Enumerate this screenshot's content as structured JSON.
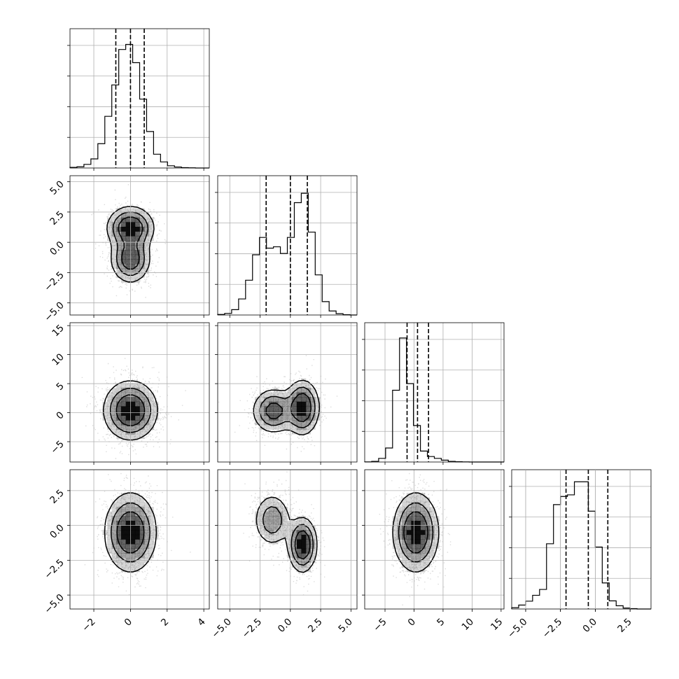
{
  "chart_data": {
    "type": "corner",
    "params": [
      {
        "name": "",
        "range": [
          -3.3,
          4.3
        ],
        "ticks": [
          -2,
          0,
          2,
          4
        ],
        "tick_labels": [
          "−2",
          "0",
          "2",
          "4"
        ],
        "quantiles": [
          -0.8,
          0.0,
          0.75
        ]
      },
      {
        "name": "",
        "range": [
          -6.0,
          5.5
        ],
        "ticks": [
          -5.0,
          -2.5,
          0.0,
          2.5,
          5.0
        ],
        "tick_labels": [
          "−5.0",
          "−2.5",
          "0.0",
          "2.5",
          "5.0"
        ],
        "quantiles": [
          -2.0,
          0.0,
          1.4
        ]
      },
      {
        "name": "",
        "range": [
          -8.5,
          15.5
        ],
        "ticks": [
          -5,
          0,
          5,
          10,
          15
        ],
        "tick_labels": [
          "−5",
          "0",
          "5",
          "10",
          "15"
        ],
        "quantiles": [
          -1.2,
          0.6,
          2.5
        ]
      },
      {
        "name": "",
        "range": [
          -6.0,
          4.0
        ],
        "ticks": [
          -5.0,
          -2.5,
          0.0,
          2.5
        ],
        "tick_labels": [
          "−5.0",
          "−2.5",
          "0.0",
          "2.5"
        ],
        "quantiles": [
          -2.1,
          -0.5,
          0.9
        ]
      }
    ],
    "histograms": [
      {
        "param": 0,
        "bin_start": -3.3,
        "bin_width": 0.38,
        "counts": [
          3,
          6,
          18,
          45,
          120,
          255,
          410,
          585,
          610,
          520,
          340,
          180,
          68,
          30,
          11,
          5,
          2,
          1,
          0,
          0
        ],
        "ymax": 660
      },
      {
        "param": 1,
        "bin_start": -6.0,
        "bin_width": 0.575,
        "counts": [
          2,
          6,
          20,
          60,
          130,
          225,
          290,
          250,
          255,
          230,
          290,
          420,
          455,
          310,
          150,
          50,
          15,
          5,
          1,
          0
        ],
        "ymax": 500
      },
      {
        "param": 2,
        "bin_start": -8.5,
        "bin_width": 1.2,
        "counts": [
          1,
          5,
          30,
          115,
          590,
          1020,
          645,
          300,
          90,
          45,
          30,
          15,
          5,
          2,
          1,
          0,
          0,
          0,
          0,
          0
        ],
        "ymax": 1100
      },
      {
        "param": 3,
        "bin_start": -6.0,
        "bin_width": 0.5,
        "counts": [
          4,
          12,
          24,
          42,
          60,
          200,
          320,
          345,
          350,
          390,
          390,
          300,
          190,
          80,
          25,
          10,
          3,
          1,
          0,
          0
        ],
        "ymax": 410
      }
    ],
    "pairs": [
      {
        "x_param": 0,
        "y_param": 1,
        "modes": [
          {
            "mx": 0.0,
            "my": 1.2,
            "sx": 0.65,
            "sy": 0.9,
            "w": 0.55
          },
          {
            "mx": 0.0,
            "my": -1.4,
            "sx": 0.55,
            "sy": 1.0,
            "w": 0.45
          }
        ]
      },
      {
        "x_param": 0,
        "y_param": 2,
        "modes": [
          {
            "mx": 0.0,
            "my": 0.4,
            "sx": 0.75,
            "sy": 2.6,
            "w": 1.0
          }
        ]
      },
      {
        "x_param": 1,
        "y_param": 2,
        "modes": [
          {
            "mx": -1.4,
            "my": 0.3,
            "sx": 0.9,
            "sy": 2.0,
            "w": 0.45
          },
          {
            "mx": 1.0,
            "my": 0.9,
            "sx": 0.7,
            "sy": 2.4,
            "w": 0.55
          }
        ]
      },
      {
        "x_param": 0,
        "y_param": 3,
        "modes": [
          {
            "mx": 0.0,
            "my": -0.5,
            "sx": 0.72,
            "sy": 1.45,
            "w": 1.0
          }
        ]
      },
      {
        "x_param": 1,
        "y_param": 3,
        "modes": [
          {
            "mx": -1.5,
            "my": 0.4,
            "sx": 0.8,
            "sy": 1.0,
            "w": 0.42
          },
          {
            "mx": 1.0,
            "my": -1.4,
            "sx": 0.6,
            "sy": 1.0,
            "w": 0.58
          }
        ]
      },
      {
        "x_param": 2,
        "y_param": 3,
        "modes": [
          {
            "mx": 0.3,
            "my": -0.5,
            "sx": 2.0,
            "sy": 1.45,
            "w": 1.0
          }
        ]
      }
    ],
    "contour_levels": [
      0.6,
      0.35,
      0.15
    ],
    "grid": true,
    "colors": {
      "histogram": "#000000",
      "quantile_line": "#000000",
      "contour": "#000000",
      "points": "#9a9a9a",
      "grid": "#b0b0b0"
    }
  }
}
